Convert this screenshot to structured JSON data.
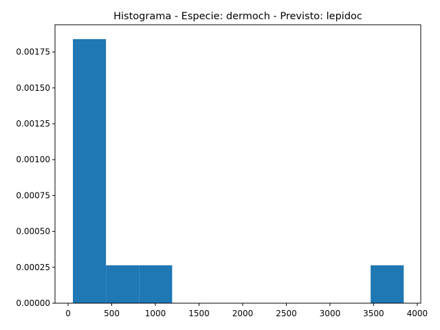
{
  "chart_data": {
    "type": "bar",
    "title": "Histograma - Especie: dermoch - Previsto: lepidoc",
    "xlabel": "",
    "ylabel": "",
    "xlim": [
      -150,
      4040
    ],
    "ylim": [
      0,
      0.00194
    ],
    "bar_color": "#1f77b4",
    "bins": [
      {
        "x0": 55,
        "x1": 434,
        "value": 0.00184
      },
      {
        "x0": 434,
        "x1": 813,
        "value": 0.000264
      },
      {
        "x0": 813,
        "x1": 1192,
        "value": 0.000264
      },
      {
        "x0": 1192,
        "x1": 1571,
        "value": 0
      },
      {
        "x0": 1571,
        "x1": 1950,
        "value": 0
      },
      {
        "x0": 1950,
        "x1": 2329,
        "value": 0
      },
      {
        "x0": 2329,
        "x1": 2708,
        "value": 0
      },
      {
        "x0": 2708,
        "x1": 3087,
        "value": 0
      },
      {
        "x0": 3087,
        "x1": 3466,
        "value": 0
      },
      {
        "x0": 3466,
        "x1": 3845,
        "value": 0.000264
      }
    ],
    "xticks": [
      {
        "value": 0,
        "label": "0"
      },
      {
        "value": 500,
        "label": "500"
      },
      {
        "value": 1000,
        "label": "1000"
      },
      {
        "value": 1500,
        "label": "1500"
      },
      {
        "value": 2000,
        "label": "2000"
      },
      {
        "value": 2500,
        "label": "2500"
      },
      {
        "value": 3000,
        "label": "3000"
      },
      {
        "value": 3500,
        "label": "3500"
      },
      {
        "value": 4000,
        "label": "4000"
      }
    ],
    "yticks": [
      {
        "value": 0,
        "label": "0.00000"
      },
      {
        "value": 0.00025,
        "label": "0.00025"
      },
      {
        "value": 0.0005,
        "label": "0.00050"
      },
      {
        "value": 0.00075,
        "label": "0.00075"
      },
      {
        "value": 0.001,
        "label": "0.00100"
      },
      {
        "value": 0.00125,
        "label": "0.00125"
      },
      {
        "value": 0.0015,
        "label": "0.00150"
      },
      {
        "value": 0.00175,
        "label": "0.00175"
      }
    ]
  }
}
